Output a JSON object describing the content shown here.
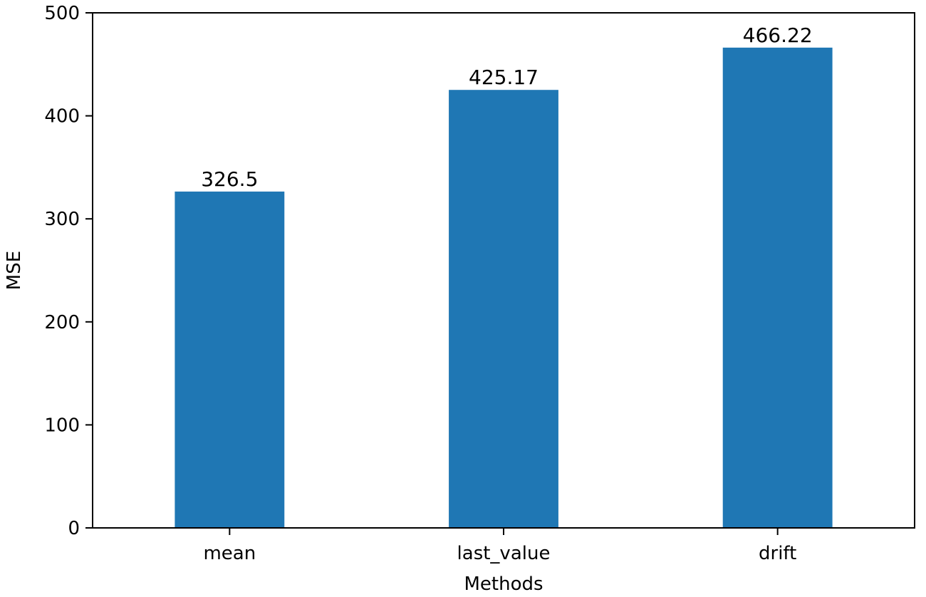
{
  "chart_data": {
    "type": "bar",
    "categories": [
      "mean",
      "last_value",
      "drift"
    ],
    "values": [
      326.5,
      425.17,
      466.22
    ],
    "data_labels": [
      "326.5",
      "425.17",
      "466.22"
    ],
    "xlabel": "Methods",
    "ylabel": "MSE",
    "ylim": [
      0,
      500
    ],
    "yticks": [
      0,
      100,
      200,
      300,
      400,
      500
    ],
    "ytick_labels": [
      "0",
      "100",
      "200",
      "300",
      "400",
      "500"
    ],
    "grid": false,
    "legend": "none",
    "colors": {
      "bar": "#1f77b4",
      "axis": "#000000",
      "background": "#ffffff"
    }
  }
}
